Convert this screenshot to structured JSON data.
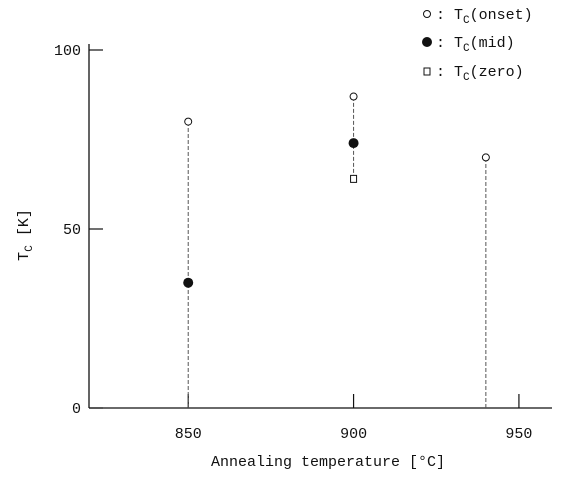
{
  "chart_data": {
    "type": "scatter",
    "title": "",
    "xlabel": "Annealing temperature [°C]",
    "ylabel": "T_C [K]",
    "ylabel_main": "T",
    "ylabel_sub": "C",
    "ylabel_unit": " [K]",
    "xlim": [
      820,
      960
    ],
    "ylim": [
      0,
      100
    ],
    "x_ticks": [
      850,
      900,
      950
    ],
    "x_tick_labels": [
      "850",
      "900",
      "950"
    ],
    "y_ticks": [
      0,
      50,
      100
    ],
    "y_tick_labels": [
      "0",
      "50",
      "100"
    ],
    "grid": false,
    "legend_position": "top-right",
    "series": [
      {
        "name": ": T_C(onset)",
        "legend_prefix": ": T",
        "legend_sub": "C",
        "legend_suffix": "(onset)",
        "marker": "open-circle",
        "x": [
          850,
          900,
          940
        ],
        "y": [
          80,
          87,
          70
        ]
      },
      {
        "name": ": T_C(mid)",
        "legend_prefix": ": T",
        "legend_sub": "C",
        "legend_suffix": "(mid)",
        "marker": "filled-circle",
        "x": [
          850,
          900
        ],
        "y": [
          35,
          74
        ]
      },
      {
        "name": ": T_C(zero)",
        "legend_prefix": ": T",
        "legend_sub": "C",
        "legend_suffix": "(zero)",
        "marker": "open-square",
        "x": [
          900
        ],
        "y": [
          64
        ]
      }
    ],
    "range_lines": [
      {
        "x": 850,
        "y_from": 0,
        "y_to": 80
      },
      {
        "x": 900,
        "y_from": 64,
        "y_to": 87
      },
      {
        "x": 940,
        "y_from": 0,
        "y_to": 70
      }
    ],
    "colors": {
      "ink": "#111111",
      "range_line": "#555555"
    }
  }
}
